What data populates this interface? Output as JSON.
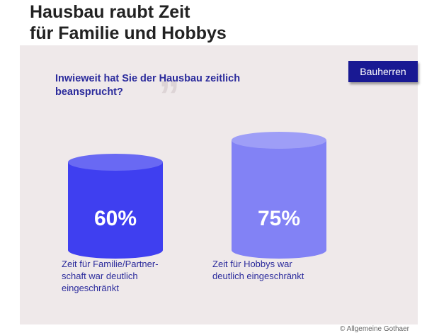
{
  "title": [
    "Hausbau raubt Zeit",
    "für Familie und Hobbys"
  ],
  "question": [
    "Inwieweit hat Sie der Hausbau zeitlich",
    "beansprucht?"
  ],
  "badge": "Bauherren",
  "footer": "© Allgemeine Gothaer",
  "colors": {
    "panel": "#efe9ea",
    "series": [
      "#3f3ff0",
      "#8282f5"
    ]
  },
  "chart_data": {
    "type": "bar",
    "title": "Inwieweit hat Sie der Hausbau zeitlich beansprucht?",
    "categories": [
      [
        "Zeit für Familie/Partner-",
        "schaft war deutlich",
        "eingeschränkt"
      ],
      [
        "Zeit für Hobbys war",
        "deutlich eingeschränkt"
      ]
    ],
    "values": [
      60,
      75
    ],
    "data_labels": [
      "60%",
      "75%"
    ],
    "unit": "%",
    "ylim": [
      0,
      100
    ],
    "grid": false,
    "legend": "none"
  }
}
